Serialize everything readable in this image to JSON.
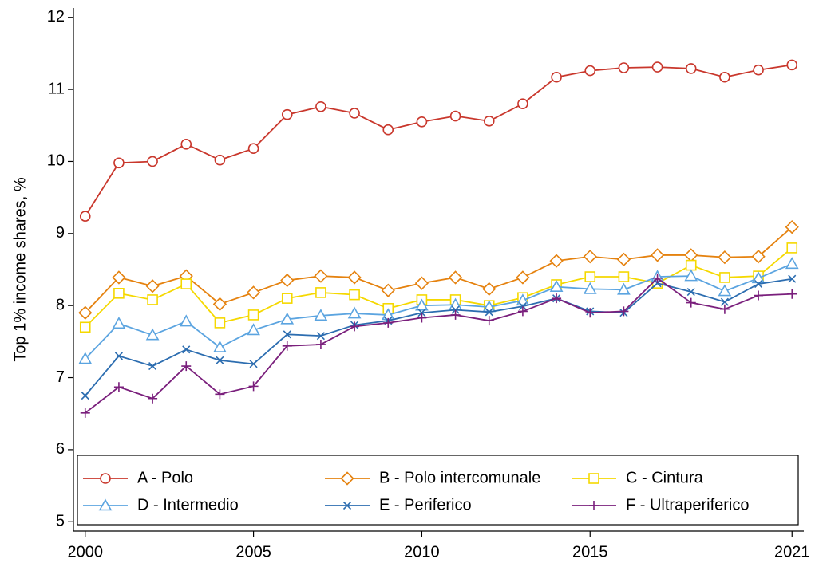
{
  "chart_data": {
    "type": "line",
    "y_label": "Top 1% income shares, %",
    "x": [
      2000,
      2001,
      2002,
      2003,
      2004,
      2005,
      2006,
      2007,
      2008,
      2009,
      2010,
      2011,
      2012,
      2013,
      2014,
      2015,
      2016,
      2017,
      2018,
      2019,
      2020,
      2021
    ],
    "series": [
      {
        "name": "A - Polo",
        "color": "#c9372c",
        "marker": "circle",
        "values": [
          9.24,
          9.98,
          10.0,
          10.24,
          10.02,
          10.18,
          10.65,
          10.76,
          10.67,
          10.44,
          10.55,
          10.63,
          10.56,
          10.8,
          11.17,
          11.26,
          11.3,
          11.31,
          11.29,
          11.17,
          11.27,
          11.34
        ]
      },
      {
        "name": "B - Polo intercomunale",
        "color": "#e5820f",
        "marker": "diamond",
        "values": [
          7.9,
          8.39,
          8.27,
          8.41,
          8.02,
          8.18,
          8.35,
          8.41,
          8.39,
          8.21,
          8.31,
          8.39,
          8.23,
          8.39,
          8.62,
          8.68,
          8.64,
          8.7,
          8.7,
          8.67,
          8.68,
          9.09
        ]
      },
      {
        "name": "C - Cintura",
        "color": "#f5d800",
        "marker": "square",
        "values": [
          7.7,
          8.17,
          8.08,
          8.3,
          7.76,
          7.87,
          8.1,
          8.18,
          8.15,
          7.96,
          8.08,
          8.08,
          8.0,
          8.11,
          8.29,
          8.4,
          8.4,
          8.31,
          8.56,
          8.39,
          8.41,
          8.8
        ]
      },
      {
        "name": "D - Intermedio",
        "color": "#5ba4e0",
        "marker": "triangle",
        "values": [
          7.26,
          7.75,
          7.59,
          7.78,
          7.42,
          7.66,
          7.81,
          7.86,
          7.89,
          7.87,
          8.0,
          8.01,
          7.98,
          8.07,
          8.26,
          8.23,
          8.22,
          8.4,
          8.41,
          8.2,
          8.38,
          8.58
        ]
      },
      {
        "name": "E - Periferico",
        "color": "#2c6db0",
        "marker": "x",
        "values": [
          6.75,
          7.3,
          7.16,
          7.39,
          7.24,
          7.19,
          7.6,
          7.58,
          7.73,
          7.79,
          7.9,
          7.94,
          7.91,
          7.99,
          8.1,
          7.92,
          7.9,
          8.31,
          8.19,
          8.05,
          8.3,
          8.37
        ]
      },
      {
        "name": "F - Ultraperiferico",
        "color": "#7a1f7c",
        "marker": "plus",
        "values": [
          6.51,
          6.87,
          6.71,
          7.16,
          6.77,
          6.88,
          7.44,
          7.46,
          7.71,
          7.76,
          7.83,
          7.87,
          7.79,
          7.92,
          8.1,
          7.9,
          7.92,
          8.38,
          8.04,
          7.95,
          8.14,
          8.16
        ]
      }
    ],
    "xlim": [
      1999.65,
      2021.35
    ],
    "xticks": [
      2000,
      2005,
      2010,
      2015,
      2021
    ],
    "ylim": [
      4.87,
      12.13
    ],
    "yticks": [
      5,
      6,
      7,
      8,
      9,
      10,
      11,
      12
    ]
  }
}
